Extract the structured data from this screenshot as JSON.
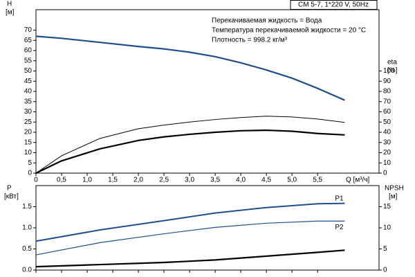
{
  "chart_data": [
    {
      "type": "line",
      "title": "CM 5-7, 1*220 V, 50Hz",
      "annotations": [
        "Перекачиваемая жидкость = Вода",
        "Температура перекачиваемой жидкости = 20 °C",
        "Плотность = 998.2 кг/м³"
      ],
      "ylabel": [
        "H",
        "[м]"
      ],
      "y2label": [
        "eta",
        "[%]"
      ],
      "xlabel": "Q [м³/ч]",
      "x": [
        0,
        0.5,
        1.25,
        2,
        2.5,
        3,
        3.5,
        4,
        4.5,
        5,
        5.5,
        6.03
      ],
      "series": [
        {
          "color": "#1f4e8c",
          "width": 2.2,
          "values": [
            67,
            66,
            64,
            62,
            60.8,
            59.2,
            57,
            54,
            50.5,
            46.5,
            41.5,
            35.7
          ]
        },
        {
          "color": "#000000",
          "width": 1,
          "axis": "y2",
          "values": [
            0,
            17,
            34,
            43.5,
            47,
            50,
            52.5,
            54.4,
            55.8,
            55,
            53,
            49.7
          ]
        },
        {
          "color": "#000000",
          "width": 2.2,
          "axis": "y2",
          "values": [
            0,
            12,
            23.8,
            32,
            35.5,
            38,
            40,
            41.5,
            42,
            41,
            38.8,
            37.4
          ]
        }
      ],
      "xlim": [
        0,
        6.7
      ],
      "xticks": [
        0,
        {
          "value": 0.5,
          "label": "0,5"
        },
        {
          "value": 1,
          "label": "1,0"
        },
        {
          "value": 1.5,
          "label": "1,5"
        },
        {
          "value": 2,
          "label": "2,0"
        },
        {
          "value": 2.5,
          "label": "2,5"
        },
        {
          "value": 3,
          "label": "3,0"
        },
        {
          "value": 3.5,
          "label": "3,5"
        },
        {
          "value": 4,
          "label": "4,0"
        },
        {
          "value": 4.5,
          "label": "4,5"
        },
        {
          "value": 5,
          "label": "5,0"
        },
        {
          "value": 5.5,
          "label": "5,5"
        }
      ],
      "ylim": [
        0,
        80
      ],
      "yticks": [
        0,
        5,
        10,
        15,
        20,
        25,
        30,
        35,
        40,
        45,
        50,
        55,
        60,
        65,
        70
      ],
      "y2lim": [
        0,
        160
      ],
      "y2ticks": [
        0,
        10,
        20,
        30,
        40,
        50,
        60,
        70,
        80,
        90,
        100
      ]
    },
    {
      "type": "line",
      "ylabel": [
        "P",
        "[кВт]"
      ],
      "y2label": [
        "NPSH",
        "[м]"
      ],
      "x": [
        0,
        1.25,
        2.5,
        3.5,
        4.5,
        5.5,
        6.03
      ],
      "series": [
        {
          "name": "P1",
          "color": "#1f4e8c",
          "width": 2,
          "values": [
            0.685,
            0.95,
            1.17,
            1.35,
            1.48,
            1.57,
            1.58
          ]
        },
        {
          "name": "P2",
          "color": "#1f4e8c",
          "width": 1.2,
          "values": [
            0.36,
            0.65,
            0.86,
            1.01,
            1.11,
            1.16,
            1.16
          ]
        },
        {
          "color": "#000000",
          "width": 2.2,
          "axis": "y2",
          "values": [
            0.8,
            1.3,
            1.8,
            2.4,
            3.3,
            4.2,
            4.7
          ]
        }
      ],
      "xlim": [
        0,
        6.7
      ],
      "ylim": [
        0,
        2
      ],
      "yticks": [
        {
          "value": 0,
          "label": "0.0"
        },
        0.5,
        {
          "value": 1,
          "label": "1.0"
        },
        1.5
      ],
      "y2lim": [
        0,
        20
      ],
      "y2ticks": [
        0,
        5,
        10,
        15
      ]
    }
  ]
}
